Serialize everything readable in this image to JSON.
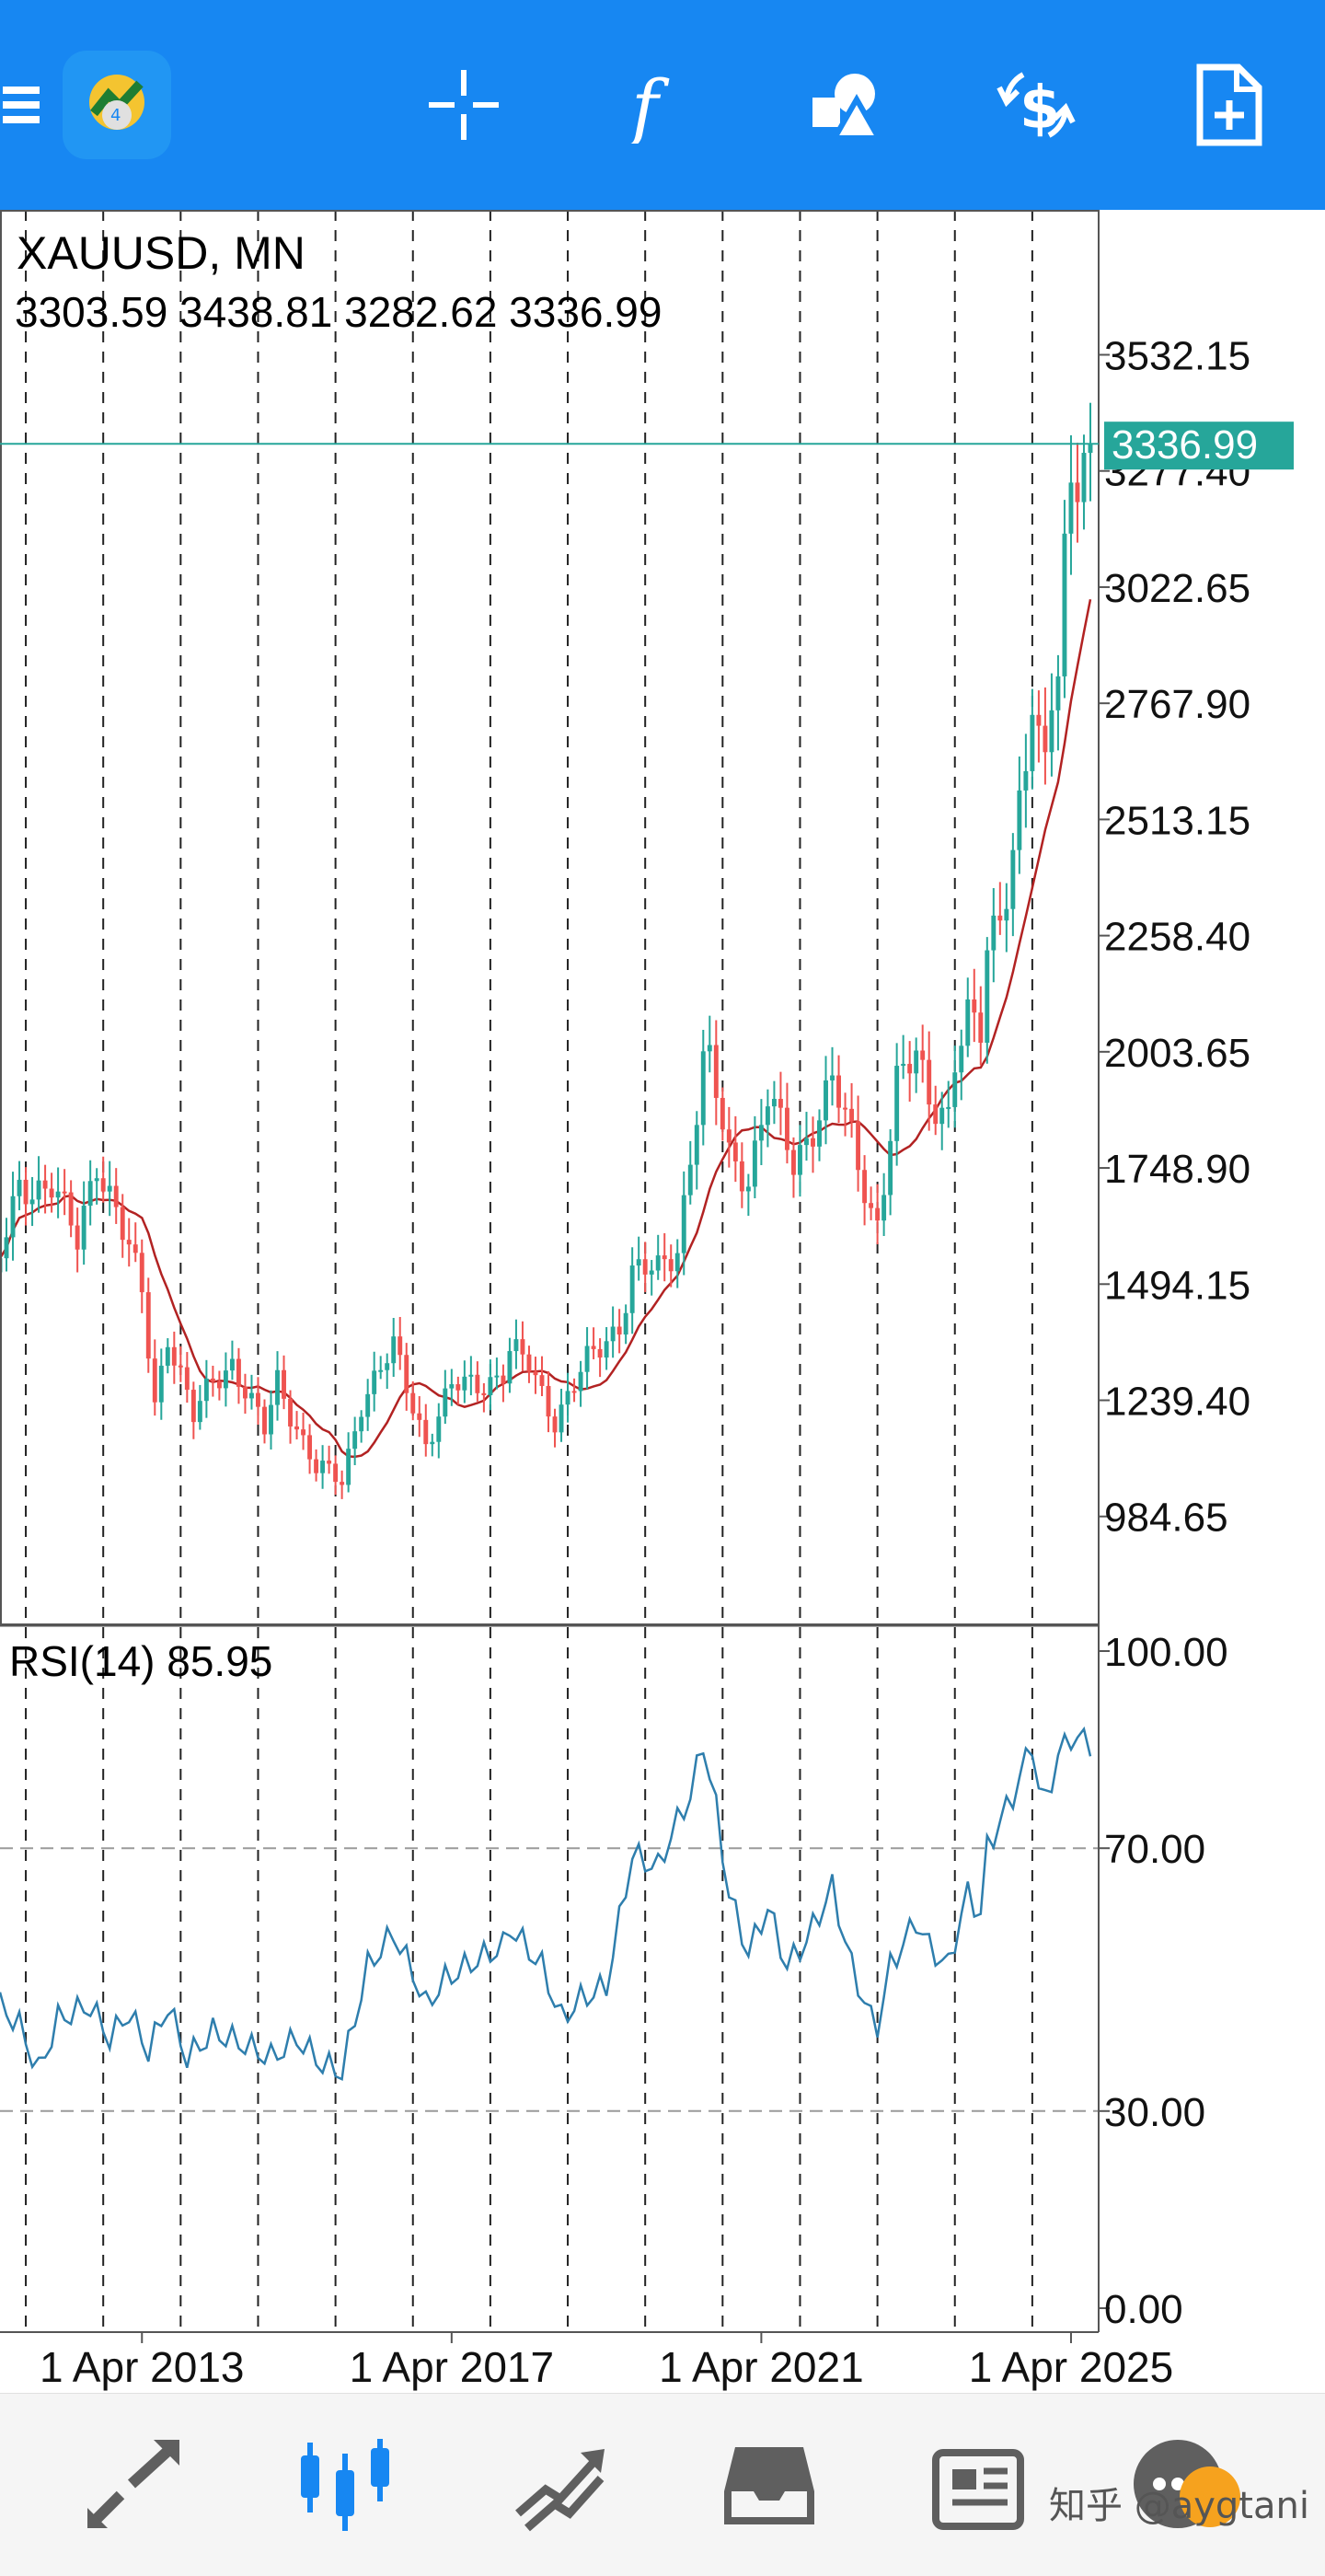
{
  "toolbar": {
    "menu_icon": "hamburger-menu-icon",
    "logo_icon": "metatrader-logo-icon",
    "items": [
      {
        "name": "crosshair-icon"
      },
      {
        "name": "indicators-icon"
      },
      {
        "name": "objects-icon"
      },
      {
        "name": "symbol-change-icon"
      },
      {
        "name": "new-order-icon"
      }
    ]
  },
  "chart_data": {
    "type": "candlestick",
    "symbol_timeframe": "XAUUSD, MN",
    "ohlc_readout": "3303.59 3438.81 3282.62 3336.99",
    "current_price": 3336.99,
    "current_price_label": "3336.99",
    "price_ticks": [
      "3532.15",
      "3277.40",
      "3022.65",
      "2767.90",
      "2513.15",
      "2258.40",
      "2003.65",
      "1748.90",
      "1494.15",
      "1239.40",
      "984.65"
    ],
    "x_ticks": [
      "1 Apr 2013",
      "1 Apr 2017",
      "1 Apr 2021",
      "1 Apr 2025"
    ],
    "ylim": [
      750,
      3850
    ],
    "xlim_months": [
      "2011-06",
      "2025-07"
    ],
    "grid": "vertical-dashed",
    "price_anchors": [
      [
        "2011-06",
        1550
      ],
      [
        "2011-09",
        1700
      ],
      [
        "2012-02",
        1720
      ],
      [
        "2012-06",
        1580
      ],
      [
        "2012-09",
        1770
      ],
      [
        "2012-12",
        1660
      ],
      [
        "2013-04",
        1470
      ],
      [
        "2013-06",
        1230
      ],
      [
        "2013-08",
        1390
      ],
      [
        "2013-12",
        1200
      ],
      [
        "2014-03",
        1280
      ],
      [
        "2014-06",
        1325
      ],
      [
        "2014-11",
        1170
      ],
      [
        "2015-01",
        1280
      ],
      [
        "2015-07",
        1090
      ],
      [
        "2015-11",
        1060
      ],
      [
        "2016-02",
        1240
      ],
      [
        "2016-07",
        1350
      ],
      [
        "2016-12",
        1150
      ],
      [
        "2017-04",
        1265
      ],
      [
        "2017-09",
        1280
      ],
      [
        "2017-12",
        1300
      ],
      [
        "2018-01",
        1345
      ],
      [
        "2018-04",
        1315
      ],
      [
        "2018-08",
        1200
      ],
      [
        "2019-01",
        1320
      ],
      [
        "2019-06",
        1410
      ],
      [
        "2019-08",
        1520
      ],
      [
        "2019-12",
        1520
      ],
      [
        "2020-03",
        1580
      ],
      [
        "2020-07",
        1975
      ],
      [
        "2020-08",
        1968
      ],
      [
        "2020-11",
        1776
      ],
      [
        "2021-02",
        1733
      ],
      [
        "2021-05",
        1905
      ],
      [
        "2021-09",
        1756
      ],
      [
        "2022-02",
        1908
      ],
      [
        "2022-03",
        1937
      ],
      [
        "2022-06",
        1807
      ],
      [
        "2022-09",
        1660
      ],
      [
        "2022-10",
        1633
      ],
      [
        "2022-12",
        1823
      ],
      [
        "2023-01",
        1927
      ],
      [
        "2023-04",
        1990
      ],
      [
        "2023-06",
        1912
      ],
      [
        "2023-09",
        1870
      ],
      [
        "2023-10",
        1985
      ],
      [
        "2023-12",
        2062
      ],
      [
        "2024-02",
        2045
      ],
      [
        "2024-03",
        2230
      ],
      [
        "2024-05",
        2325
      ],
      [
        "2024-07",
        2445
      ],
      [
        "2024-09",
        2630
      ],
      [
        "2024-10",
        2745
      ],
      [
        "2024-11",
        2650
      ],
      [
        "2024-12",
        2620
      ],
      [
        "2025-01",
        2800
      ],
      [
        "2025-02",
        2860
      ],
      [
        "2025-03",
        3120
      ],
      [
        "2025-04",
        3290
      ],
      [
        "2025-05",
        3290
      ],
      [
        "2025-06",
        3300
      ],
      [
        "2025-07",
        3337
      ]
    ],
    "ma_color": "#b22222",
    "bull_color": "#26a69a",
    "bear_color": "#ef5350",
    "price_line_color": "#26a69a",
    "rsi": {
      "label": "RSI(14) 85.95",
      "value": 85.95,
      "ticks": [
        "100.00",
        "70.00",
        "30.00",
        "0.00"
      ],
      "levels": [
        70,
        30
      ],
      "ylim": [
        0,
        100
      ],
      "color": "#2e7ead",
      "anchors": [
        [
          "2011-06",
          46
        ],
        [
          "2011-09",
          43
        ],
        [
          "2011-12",
          36
        ],
        [
          "2012-03",
          44
        ],
        [
          "2012-08",
          46
        ],
        [
          "2012-11",
          41
        ],
        [
          "2013-02",
          45
        ],
        [
          "2013-05",
          39
        ],
        [
          "2013-08",
          46
        ],
        [
          "2013-11",
          38
        ],
        [
          "2014-03",
          42
        ],
        [
          "2014-08",
          40
        ],
        [
          "2014-12",
          38
        ],
        [
          "2015-04",
          41
        ],
        [
          "2015-08",
          37
        ],
        [
          "2015-11",
          36
        ],
        [
          "2016-01",
          44
        ],
        [
          "2016-03",
          52
        ],
        [
          "2016-07",
          57
        ],
        [
          "2016-10",
          51
        ],
        [
          "2016-12",
          46
        ],
        [
          "2017-03",
          50
        ],
        [
          "2017-08",
          53
        ],
        [
          "2017-12",
          55
        ],
        [
          "2018-01",
          58
        ],
        [
          "2018-06",
          52
        ],
        [
          "2018-09",
          44
        ],
        [
          "2018-12",
          47
        ],
        [
          "2019-04",
          49
        ],
        [
          "2019-06",
          59
        ],
        [
          "2019-08",
          69
        ],
        [
          "2019-12",
          67
        ],
        [
          "2020-02",
          72
        ],
        [
          "2020-05",
          78
        ],
        [
          "2020-07",
          86
        ],
        [
          "2020-09",
          76
        ],
        [
          "2020-11",
          63
        ],
        [
          "2021-02",
          54
        ],
        [
          "2021-05",
          61
        ],
        [
          "2021-08",
          52
        ],
        [
          "2021-11",
          56
        ],
        [
          "2022-03",
          64
        ],
        [
          "2022-06",
          52
        ],
        [
          "2022-09",
          44
        ],
        [
          "2022-10",
          43
        ],
        [
          "2022-12",
          52
        ],
        [
          "2023-04",
          59
        ],
        [
          "2023-06",
          55
        ],
        [
          "2023-09",
          52
        ],
        [
          "2023-11",
          60
        ],
        [
          "2023-12",
          63
        ],
        [
          "2024-02",
          60
        ],
        [
          "2024-03",
          70
        ],
        [
          "2024-05",
          74
        ],
        [
          "2024-07",
          78
        ],
        [
          "2024-10",
          86
        ],
        [
          "2024-11",
          79
        ],
        [
          "2024-12",
          77
        ],
        [
          "2025-02",
          84
        ],
        [
          "2025-04",
          87
        ],
        [
          "2025-07",
          86
        ]
      ]
    }
  },
  "bottom_nav": [
    {
      "name": "quotes-tab-icon"
    },
    {
      "name": "chart-tab-icon",
      "active": true
    },
    {
      "name": "trade-tab-icon"
    },
    {
      "name": "history-tab-icon"
    },
    {
      "name": "news-tab-icon"
    },
    {
      "name": "chat-tab-icon"
    }
  ],
  "watermark": "知乎 @aygtani"
}
